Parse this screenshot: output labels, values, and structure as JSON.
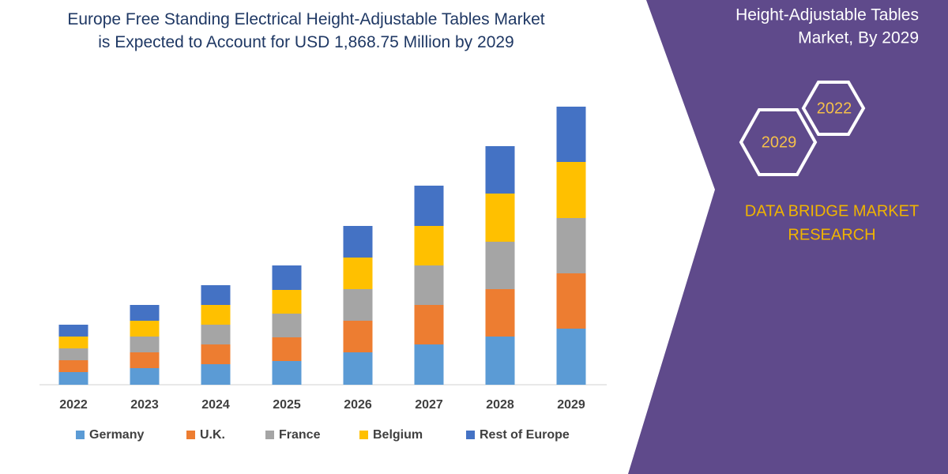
{
  "chart_data": {
    "type": "bar",
    "stacked": true,
    "title": "Europe Free Standing Electrical Height-Adjustable Tables Market is Expected to Account for USD 1,868.75 Million by 2029",
    "categories": [
      "2022",
      "2023",
      "2024",
      "2025",
      "2026",
      "2027",
      "2028",
      "2029"
    ],
    "series": [
      {
        "name": "Germany",
        "color": "#5b9bd5",
        "values": [
          16,
          21,
          26,
          30,
          41,
          51,
          61,
          71
        ]
      },
      {
        "name": "U.K.",
        "color": "#ed7d31",
        "values": [
          15,
          20,
          25,
          30,
          40,
          50,
          60,
          70
        ]
      },
      {
        "name": "France",
        "color": "#a5a5a5",
        "values": [
          15,
          20,
          25,
          30,
          40,
          50,
          60,
          70
        ]
      },
      {
        "name": "Belgium",
        "color": "#ffc000",
        "values": [
          15,
          20,
          25,
          30,
          40,
          50,
          61,
          71
        ]
      },
      {
        "name": "Rest of Europe",
        "color": "#4472c4",
        "values": [
          15,
          20,
          25,
          31,
          40,
          51,
          60,
          70
        ]
      }
    ]
  },
  "panel": {
    "heading_lines": [
      "Height-Adjustable Tables",
      "Market, By 2029"
    ],
    "hexagons": [
      "2022",
      "2029"
    ],
    "brand_lines": [
      "DATA BRIDGE MARKET",
      "RESEARCH"
    ]
  }
}
